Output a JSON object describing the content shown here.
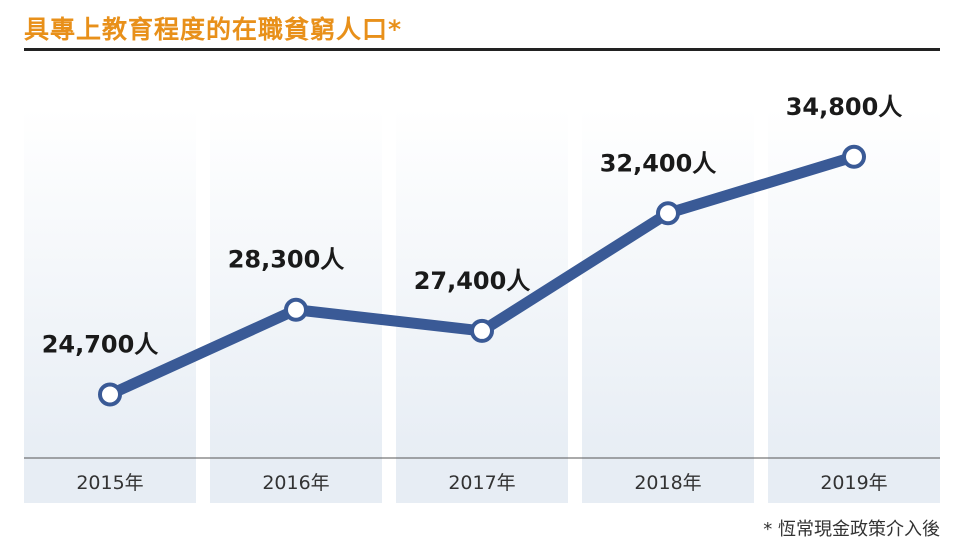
{
  "title": "具專上教育程度的在職貧窮人口*",
  "footnote": "* 恆常現金政策介入後",
  "colors": {
    "title": "#e8901a",
    "line": "#3a5a96",
    "band": "#e7edf4",
    "rule": "#222222"
  },
  "chart_data": {
    "type": "line",
    "categories": [
      "2015年",
      "2016年",
      "2017年",
      "2018年",
      "2019年"
    ],
    "values": [
      24700,
      28300,
      27400,
      32400,
      34800
    ],
    "value_labels": [
      "24,700人",
      "28,300人",
      "27,400人",
      "32,400人",
      "34,800人"
    ],
    "title": "具專上教育程度的在職貧窮人口*",
    "xlabel": "",
    "ylabel": "",
    "ylim": [
      22000,
      37000
    ],
    "grid": false
  }
}
